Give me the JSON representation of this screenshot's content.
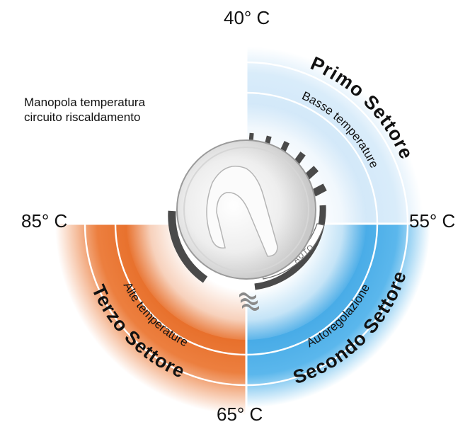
{
  "caption": {
    "line1": "Manopola temperatura",
    "line2": "circuito riscaldamento"
  },
  "temps": {
    "top": "40° C",
    "right": "55° C",
    "bottom": "65° C",
    "left": "85° C"
  },
  "sectors": {
    "first": {
      "title": "Primo Settore",
      "subtitle": "Basse temperature",
      "color": "#cfe6f8"
    },
    "second": {
      "title": "Secondo Settore",
      "subtitle": "Autoregolazione",
      "color": "#3aa3e3"
    },
    "third": {
      "title": "Terzo Settore",
      "subtitle": "Alte temperature",
      "color": "#e5661f"
    }
  },
  "knob": {
    "auto_label": "AUTO"
  }
}
